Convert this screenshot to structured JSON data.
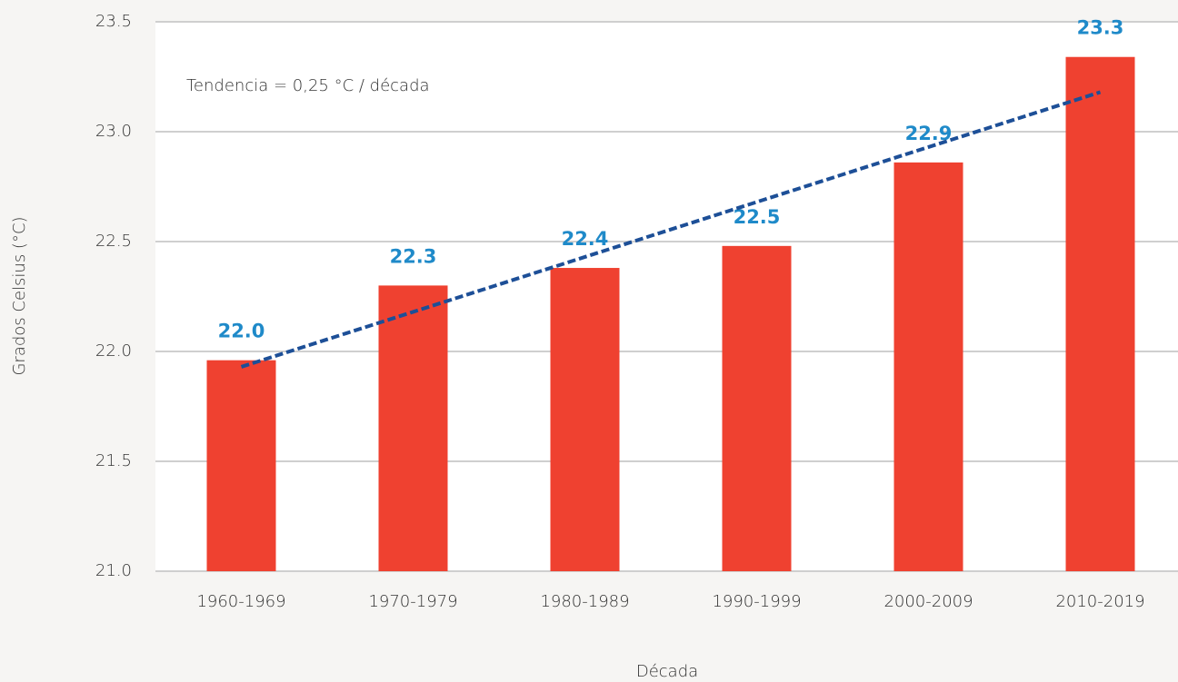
{
  "chart_data": {
    "type": "bar",
    "x_label": "Década",
    "y_label": "Grados Celsius (°C)",
    "annotation": "Tendencia = 0,25 °C / década",
    "categories": [
      "1960-1969",
      "1970-1979",
      "1980-1989",
      "1990-1999",
      "2000-2009",
      "2010-2019"
    ],
    "values": [
      21.96,
      22.3,
      22.38,
      22.48,
      22.86,
      23.34
    ],
    "value_labels": [
      "22.0",
      "22.3",
      "22.4",
      "22.5",
      "22.9",
      "23.3"
    ],
    "color": "#ef4130",
    "label_color": "#1f8ac9",
    "trend": {
      "values": [
        21.93,
        22.18,
        22.43,
        22.68,
        22.93,
        23.18
      ],
      "color": "#1d4f97",
      "dashed": true
    },
    "ylim": [
      21.0,
      23.5
    ],
    "yticks": [
      {
        "value": 21,
        "label": "21.0"
      },
      21.5,
      {
        "value": 22,
        "label": "22.0"
      },
      22.5,
      {
        "value": 23,
        "label": "23.0"
      },
      23.5
    ],
    "grid": true
  }
}
